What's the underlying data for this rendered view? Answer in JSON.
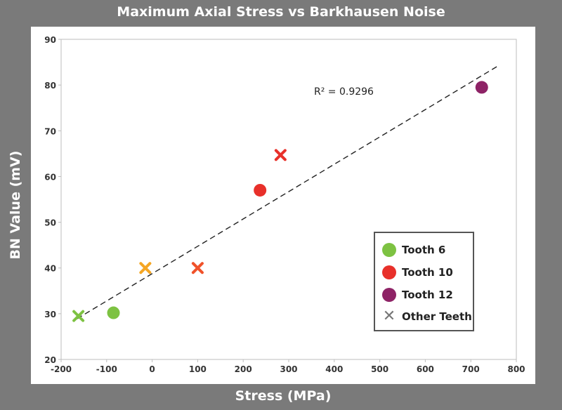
{
  "chart_data": {
    "type": "scatter",
    "title": "Maximum Axial Stress vs Barkhausen Noise",
    "xlabel": "Stress (MPa)",
    "ylabel": "BN Value (mV)",
    "xlim": [
      -200,
      800
    ],
    "ylim": [
      20,
      90
    ],
    "xticks": [
      "-200",
      "-100",
      "0",
      "100",
      "200",
      "300",
      "400",
      "500",
      "600",
      "700",
      "800"
    ],
    "yticks": [
      "20",
      "30",
      "40",
      "50",
      "60",
      "70",
      "80",
      "90"
    ],
    "annotation": "R² = 0.9296",
    "legend_position": "bottom-right",
    "series": [
      {
        "name": "Tooth 6",
        "marker": "circle",
        "color": "#7dc242",
        "points": [
          [
            -85,
            30.2
          ]
        ]
      },
      {
        "name": "Tooth 10",
        "marker": "circle",
        "color": "#e8302a",
        "points": [
          [
            237,
            57
          ]
        ]
      },
      {
        "name": "Tooth 12",
        "marker": "circle",
        "color": "#8e2366",
        "points": [
          [
            724,
            79.5
          ]
        ]
      },
      {
        "name": "Other Teeth",
        "marker": "x",
        "color": "#777777",
        "points": [
          {
            "x": -162,
            "y": 29.5,
            "color": "#7dc242"
          },
          {
            "x": -15,
            "y": 40,
            "color": "#f5a623"
          },
          {
            "x": 100,
            "y": 40,
            "color": "#f0522a"
          },
          {
            "x": 282,
            "y": 64.7,
            "color": "#e8302a"
          }
        ]
      }
    ],
    "trendline": {
      "style": "dashed",
      "from": [
        -165,
        28.9
      ],
      "to": [
        760,
        84.2
      ]
    }
  }
}
